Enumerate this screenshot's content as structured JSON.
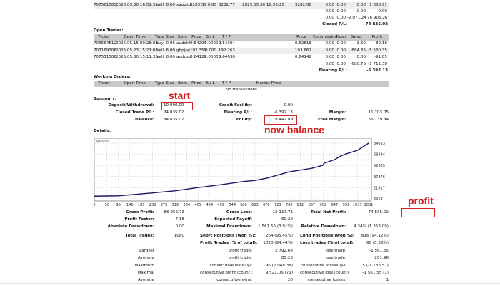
{
  "closed_trades": {
    "last_row": [
      "707561563",
      "2025.05.30 16:51:31",
      "sell",
      "8.00",
      "xauusd",
      "3283.59",
      "0.00",
      "3282.77",
      "2025.05.30 16:53:25",
      "3282.08",
      "0.00",
      "0.00",
      "0.00",
      "1 866.91"
    ],
    "totals": [
      "0.00",
      "0.00",
      "0.00",
      "0.00"
    ],
    "totals2": [
      "0.00",
      "0.00",
      "-2 071.24",
      "76 906.26"
    ],
    "closed_pl_label": "Closed P/L:",
    "closed_pl_value": "74 835.02"
  },
  "open_trades": {
    "title": "Open Trades:",
    "headers": [
      "Ticket",
      "Open Time",
      "Type",
      "Size",
      "Item",
      "Price",
      "S / L",
      "T / P",
      "",
      "Price",
      "Commission",
      "Taxes",
      "Swap",
      "Profit"
    ],
    "rows": [
      [
        "706564512",
        "2025.05.15 00:28:08",
        "buy",
        "0.06",
        "audchf",
        "0.54204",
        "0.00000",
        "0.54304",
        "",
        "0.52818",
        "0.00",
        "0.00",
        "3.60",
        "-89.18"
      ],
      [
        "707169306",
        "2025.05.23 15:21:07",
        "sell",
        "6.00",
        "gbpjpy",
        "192.359",
        "0.000",
        "192.263",
        "",
        "193.862",
        "0.00",
        "0.00",
        "-684.35",
        "-5 530.35"
      ],
      [
        "707551506",
        "2025.05.30 15:11:33",
        "sell",
        "8.00",
        "audusd",
        "0.64129",
        "0.00000",
        "0.64030",
        "",
        "0.64142",
        "0.00",
        "0.00",
        "0.00",
        "-91.85"
      ]
    ],
    "totals": [
      "0.00",
      "0.00",
      "-680.75",
      "-5 711.38"
    ],
    "floating_pl_label": "Floating P/L:",
    "floating_pl_value": "-6 392.13"
  },
  "working_orders": {
    "title": "Working Orders:",
    "headers": [
      "Ticket",
      "Open Time",
      "Type",
      "Size",
      "Item",
      "Price",
      "S / L",
      "T / P",
      "Market Price"
    ],
    "empty": "No transactions"
  },
  "summary": {
    "title": "Summary:",
    "rows": [
      [
        "Deposit/Withdrawal:",
        "10 000.00",
        "Credit Facility:",
        "0.00",
        "",
        ""
      ],
      [
        "Closed Trade P/L:",
        "74 835.02",
        "Floating P/L:",
        "-6 392.13",
        "Margin:",
        "11 703.05"
      ],
      [
        "Balance:",
        "84 835.02",
        "Equity:",
        "78 442.89",
        "Free Margin:",
        "66 739.84"
      ]
    ]
  },
  "details": {
    "title": "Details:",
    "chart_data": {
      "type": "line",
      "legend": "Balance",
      "x_ticks": [
        "0",
        "50",
        "95",
        "140",
        "185",
        "230",
        "275",
        "319",
        "364",
        "409",
        "454",
        "499",
        "544",
        "588",
        "633",
        "678",
        "723",
        "768",
        "812",
        "857",
        "902",
        "947",
        "992",
        "1037",
        "1081"
      ],
      "y_ticks": [
        "84053",
        "68494",
        "52935",
        "37376",
        "21817",
        "6258"
      ],
      "ylim": [
        6258,
        84053
      ],
      "xlim": [
        0,
        1081
      ],
      "series": [
        {
          "x": [
            0,
            95,
            230,
            319,
            409,
            499,
            588,
            633,
            678,
            768,
            857,
            900,
            905,
            947,
            970,
            992,
            1037,
            1081
          ],
          "y": [
            10000,
            10500,
            14500,
            17500,
            22000,
            26000,
            30500,
            32000,
            35000,
            44000,
            49000,
            53000,
            56000,
            61000,
            66000,
            69000,
            74000,
            84053
          ]
        }
      ],
      "line_color": "#1a1a66",
      "grid": true
    }
  },
  "stats": [
    [
      "Gross Profit:",
      "86 952.73",
      "Gross Loss:",
      "12 117.71",
      "Total Net Profit:",
      "74 835.02"
    ],
    [
      "Profit Factor:",
      "7.18",
      "Expected Payoff:",
      "69.29",
      "",
      ""
    ],
    [
      "Absolute Drawdown:",
      "0.00",
      "Maximal Drawdown:",
      "1 561.55 (3.91%)",
      "Relative Drawdown:",
      "4.34% (1 353.09)"
    ],
    [
      "Total Trades:",
      "1080",
      "Short Positions (won %):",
      "264 (95.45%)",
      "Long Positions (won %):",
      "816 (94.12%)"
    ],
    [
      "",
      "",
      "Profit Trades (% of total):",
      "1020 (94.44%)",
      "Loss trades (% of total):",
      "60 (5.56%)"
    ],
    [
      "Largest",
      "",
      "profit trade:",
      "2 792.68",
      "loss trade:",
      "-1 561.55"
    ],
    [
      "Average",
      "",
      "profit trade:",
      "85.25",
      "loss trade:",
      "-201.96"
    ],
    [
      "Maximum",
      "",
      "consecutive wins ($):",
      "96 (2 048.38)",
      "consecutive losses ($):",
      "5 (-1 183.57)"
    ],
    [
      "Maximal",
      "",
      "consecutive profit (count):",
      "9 521.06 (71)",
      "consecutive loss (count):",
      "-1 561.55 (1)"
    ],
    [
      "Average",
      "",
      "consecutive wins:",
      "20",
      "consecutive losses:",
      "1"
    ]
  ],
  "annotations": {
    "start": "start",
    "now_balance": "now balance",
    "profit": "profit",
    "color": "#d32020"
  }
}
